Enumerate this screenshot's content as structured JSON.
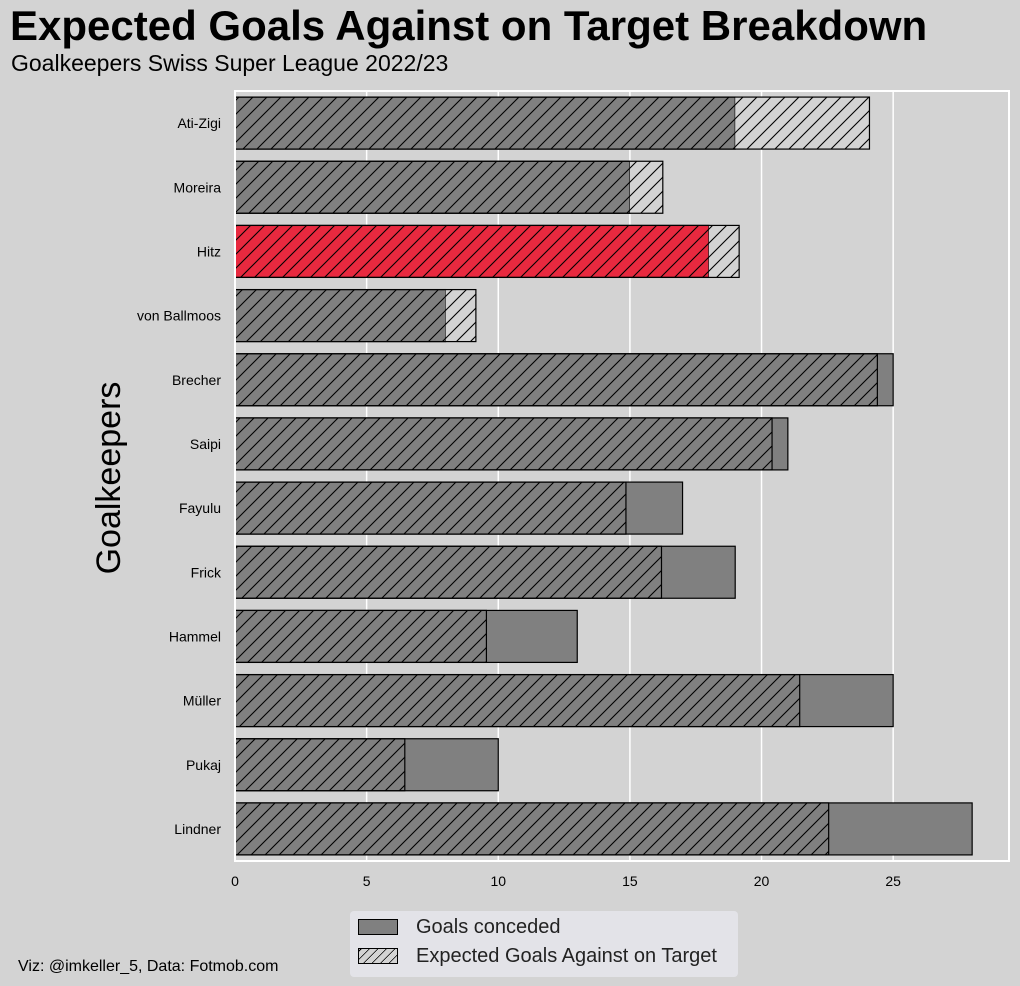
{
  "title": "Expected Goals Against on Target Breakdown",
  "subtitle": "Goalkeepers Swiss Super League 2022/23",
  "credit": "Viz: @imkeller_5,  Data: Fotmob.com",
  "colors": {
    "background": "#d3d3d3",
    "goals_bar": "#808080",
    "highlight_bar": "#e8293f",
    "xga_overflow": "#d3d3d3",
    "grid": "#ffffff"
  },
  "chart_data": {
    "type": "bar",
    "orientation": "horizontal",
    "ylabel": "Goalkeepers",
    "xlabel": "",
    "xlim": [
      0,
      29.4
    ],
    "xticks": [
      0,
      5,
      10,
      15,
      20,
      25
    ],
    "grid": true,
    "highlight": "Hitz",
    "categories": [
      "Ati-Zigi",
      "Moreira",
      "Hitz",
      "von Ballmoos",
      "Brecher",
      "Saipi",
      "Fayulu",
      "Frick",
      "Hammel",
      "Müller",
      "Pukaj",
      "Lindner"
    ],
    "series": [
      {
        "name": "Goals conceded",
        "values": [
          19,
          15,
          18,
          8,
          25,
          21,
          17,
          19,
          13,
          25,
          10,
          28
        ]
      },
      {
        "name": "Expected Goals Against on Target",
        "values": [
          24.1,
          16.25,
          19.15,
          9.15,
          24.4,
          20.4,
          14.85,
          16.2,
          9.55,
          21.45,
          6.45,
          22.55
        ]
      }
    ]
  },
  "legend": {
    "placement": "bottom-center",
    "items": [
      {
        "label": "Goals conceded"
      },
      {
        "label": "Expected Goals Against on Target"
      }
    ]
  }
}
